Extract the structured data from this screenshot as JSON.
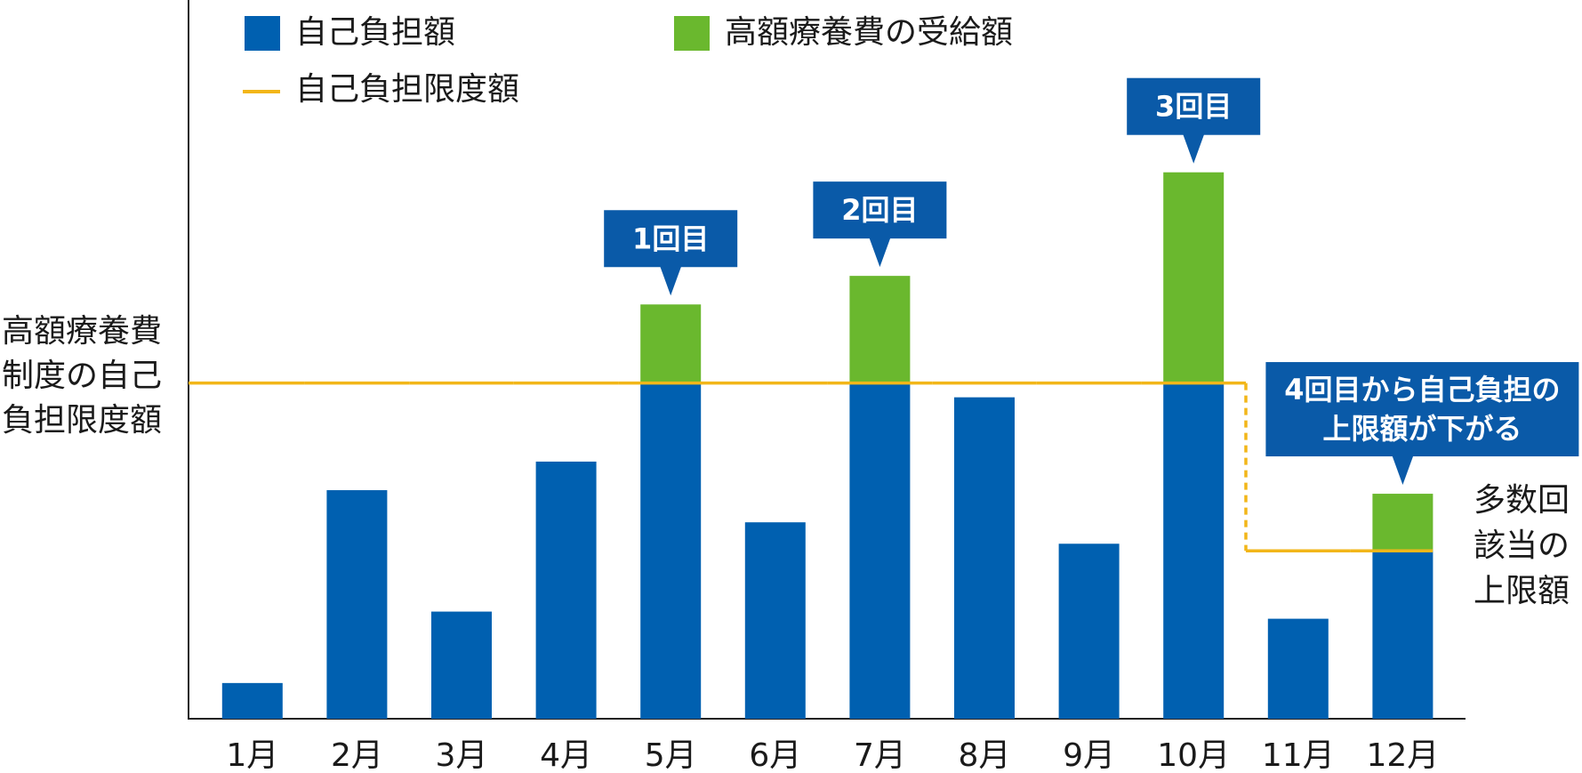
{
  "chart_data": {
    "type": "stacked_bar",
    "categories": [
      "1月",
      "2月",
      "3月",
      "4月",
      "5月",
      "6月",
      "7月",
      "8月",
      "9月",
      "10月",
      "11月",
      "12月"
    ],
    "series": [
      {
        "name": "自己負担額",
        "color": "#0060b0",
        "values": [
          5,
          32,
          15,
          36,
          47,
          27.5,
          47,
          45,
          24.5,
          47,
          14,
          23.5
        ]
      },
      {
        "name": "高額療養費の受給額",
        "color": "#6ab82e",
        "values": [
          null,
          null,
          null,
          null,
          11,
          null,
          15,
          null,
          null,
          29.5,
          null,
          8
        ]
      }
    ],
    "limit_line": {
      "name": "自己負担限度額",
      "color": "#f2b619",
      "values": [
        47,
        47,
        47,
        47,
        47,
        47,
        47,
        47,
        47,
        47,
        23.5,
        23.5
      ]
    },
    "ylim": [
      0,
      100
    ],
    "left_label": [
      "高額療養費",
      "制度の自己",
      "負担限度額"
    ],
    "right_label": [
      "多数回",
      "該当の",
      "上限額"
    ],
    "callouts": [
      {
        "category": "5月",
        "lines": [
          "1回目"
        ]
      },
      {
        "category": "7月",
        "lines": [
          "2回目"
        ]
      },
      {
        "category": "10月",
        "lines": [
          "3回目"
        ]
      },
      {
        "category": "12月",
        "lines": [
          "4回目から自己負担の",
          "上限額が下がる"
        ]
      }
    ]
  }
}
